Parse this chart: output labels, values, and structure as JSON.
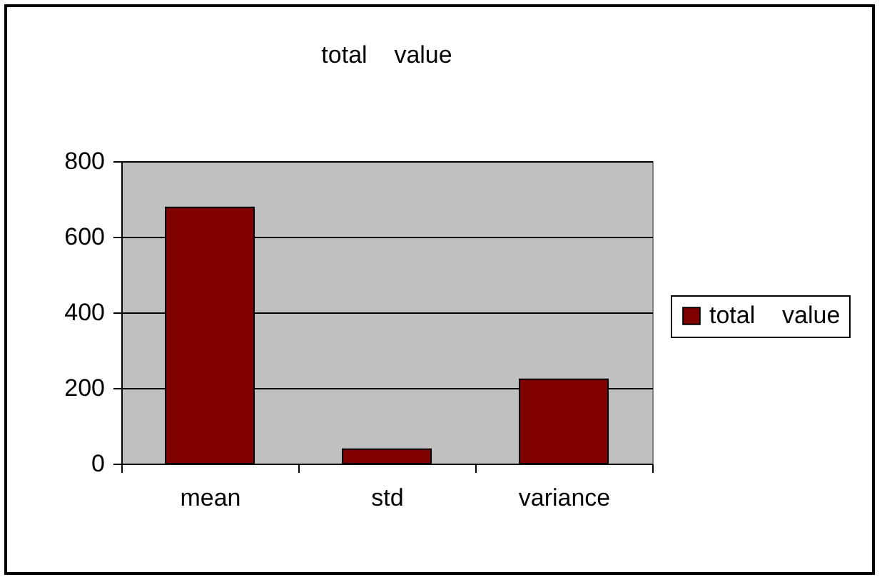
{
  "chart_data": {
    "type": "bar",
    "title": "total    value",
    "categories": [
      "mean",
      "std",
      "variance"
    ],
    "series": [
      {
        "name": "total    value",
        "color": "#800000",
        "values": [
          678,
          38,
          223
        ]
      }
    ],
    "ylim": [
      0,
      800
    ],
    "yticks": [
      0,
      200,
      400,
      600,
      800
    ],
    "grid": "y",
    "legend": "right"
  }
}
